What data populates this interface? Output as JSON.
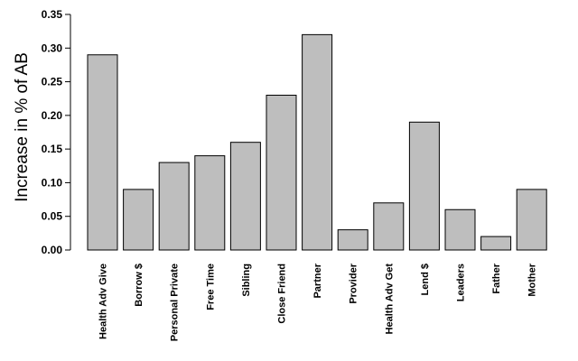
{
  "chart_data": {
    "type": "bar",
    "title": "",
    "xlabel": "",
    "ylabel": "Increase in % of AB",
    "categories": [
      "Health Adv Give",
      "Borrow $",
      "Personal Private",
      "Free Time",
      "Sibling",
      "Close Friend",
      "Partner",
      "Provider",
      "Health Adv Get",
      "Lend $",
      "Leaders",
      "Father",
      "Mother"
    ],
    "values": [
      0.29,
      0.09,
      0.13,
      0.14,
      0.16,
      0.23,
      0.32,
      0.03,
      0.07,
      0.19,
      0.06,
      0.02,
      0.09
    ],
    "ylim": [
      0,
      0.35
    ],
    "yticks": [
      "0.00",
      "0.05",
      "0.10",
      "0.15",
      "0.20",
      "0.25",
      "0.30",
      "0.35"
    ],
    "grid": false,
    "bar_color": "#bebebe"
  }
}
